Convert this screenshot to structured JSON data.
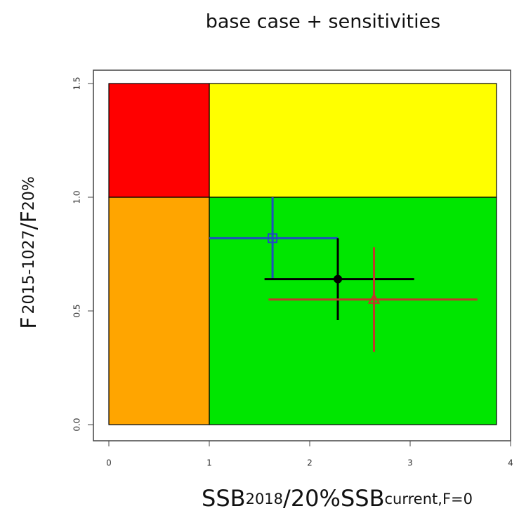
{
  "chart_data": {
    "type": "kobe",
    "title": "base case + sensitivities",
    "x_label": [
      "SSB",
      "2018",
      "/20%SSB",
      "current,F=0"
    ],
    "y_label": [
      "F",
      "2015-1027",
      "/F",
      "20%"
    ],
    "xlim": [
      0,
      4
    ],
    "ylim": [
      0,
      1.5
    ],
    "xticks": [
      0,
      1,
      2,
      3,
      4
    ],
    "yticks": [
      {
        "value": 0,
        "label": "0.0"
      },
      {
        "value": 0.5,
        "label": "0.5"
      },
      {
        "value": 1,
        "label": "1.0"
      },
      {
        "value": 1.5,
        "label": "1.5"
      }
    ],
    "zones": [
      {
        "color": "#ff0000",
        "x": [
          0,
          1
        ],
        "y": [
          1,
          1.5
        ]
      },
      {
        "color": "#ffff00",
        "x": [
          1,
          3.86
        ],
        "y": [
          1,
          1.5
        ]
      },
      {
        "color": "#ffa500",
        "x": [
          0,
          1
        ],
        "y": [
          0,
          1
        ]
      },
      {
        "color": "#00e600",
        "x": [
          1,
          3.86
        ],
        "y": [
          0,
          1
        ]
      }
    ],
    "series": [
      {
        "color": "#1f4fbf",
        "marker": "square",
        "x": 1.63,
        "y": 0.82,
        "x_range": [
          1.0,
          2.28
        ],
        "y_range": [
          0.64,
          1.0
        ]
      },
      {
        "color": "#000000",
        "marker": "circle",
        "x": 2.28,
        "y": 0.64,
        "x_range": [
          1.55,
          3.04
        ],
        "y_range": [
          0.46,
          0.82
        ]
      },
      {
        "color": "#c0392b",
        "marker": "triangle",
        "x": 2.64,
        "y": 0.55,
        "x_range": [
          1.59,
          3.67
        ],
        "y_range": [
          0.32,
          0.78
        ]
      }
    ]
  }
}
